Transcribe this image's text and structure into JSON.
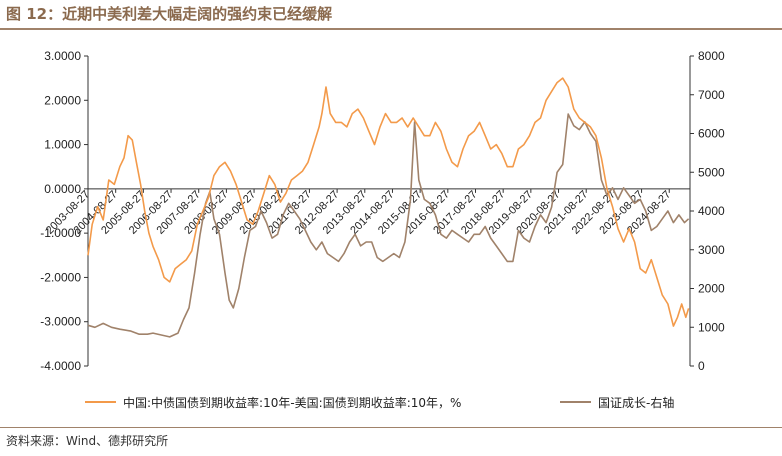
{
  "figure": {
    "title": "图 12：近期中美利差大幅走阔的强约束已经缓解",
    "source": "资料来源：Wind、德邦研究所"
  },
  "chart_data": {
    "type": "line",
    "x_tick_labels": [
      "2003-08-27",
      "2004-08-27",
      "2005-08-27",
      "2006-08-27",
      "2007-08-27",
      "2008-08-27",
      "2009-08-27",
      "2010-08-27",
      "2011-08-27",
      "2012-08-27",
      "2013-08-27",
      "2014-08-27",
      "2015-08-27",
      "2016-08-27",
      "2017-08-27",
      "2018-08-27",
      "2019-08-27",
      "2020-08-27",
      "2021-08-27",
      "2022-08-27",
      "2023-08-27",
      "2024-08-27"
    ],
    "y_left": {
      "ticks": [
        "3.0000",
        "2.0000",
        "1.0000",
        "0.0000",
        "-1.0000",
        "-2.0000",
        "-3.0000",
        "-4.0000"
      ],
      "ylim": [
        -4,
        3
      ]
    },
    "y_right": {
      "ticks": [
        "8000",
        "7000",
        "6000",
        "5000",
        "4000",
        "3000",
        "2000",
        "1000",
        "0"
      ],
      "ylim": [
        0,
        8000
      ]
    },
    "x_range": [
      2003.65,
      2025.4
    ],
    "series": [
      {
        "name": "中国:中债国债到期收益率:10年-美国:国债到期收益率:10年，%",
        "axis": "left",
        "color": "#F39A4A",
        "points": [
          [
            2003.65,
            -1.5
          ],
          [
            2003.8,
            -0.8
          ],
          [
            2004.0,
            -0.4
          ],
          [
            2004.2,
            -0.7
          ],
          [
            2004.4,
            0.2
          ],
          [
            2004.6,
            0.1
          ],
          [
            2004.8,
            0.5
          ],
          [
            2004.95,
            0.7
          ],
          [
            2005.1,
            1.2
          ],
          [
            2005.25,
            1.1
          ],
          [
            2005.4,
            0.6
          ],
          [
            2005.55,
            0.1
          ],
          [
            2005.7,
            -0.5
          ],
          [
            2005.85,
            -1.0
          ],
          [
            2006.0,
            -1.3
          ],
          [
            2006.2,
            -1.6
          ],
          [
            2006.4,
            -2.0
          ],
          [
            2006.6,
            -2.1
          ],
          [
            2006.8,
            -1.8
          ],
          [
            2007.0,
            -1.7
          ],
          [
            2007.2,
            -1.6
          ],
          [
            2007.4,
            -1.4
          ],
          [
            2007.6,
            -0.8
          ],
          [
            2007.8,
            -0.5
          ],
          [
            2008.0,
            -0.2
          ],
          [
            2008.2,
            0.3
          ],
          [
            2008.4,
            0.5
          ],
          [
            2008.6,
            0.6
          ],
          [
            2008.8,
            0.4
          ],
          [
            2009.0,
            0.1
          ],
          [
            2009.2,
            -0.3
          ],
          [
            2009.4,
            -0.7
          ],
          [
            2009.6,
            -0.8
          ],
          [
            2009.8,
            -0.5
          ],
          [
            2010.0,
            -0.1
          ],
          [
            2010.2,
            0.3
          ],
          [
            2010.4,
            0.1
          ],
          [
            2010.6,
            -0.3
          ],
          [
            2010.8,
            -0.1
          ],
          [
            2011.0,
            0.2
          ],
          [
            2011.2,
            0.3
          ],
          [
            2011.4,
            0.4
          ],
          [
            2011.6,
            0.6
          ],
          [
            2011.8,
            1.0
          ],
          [
            2012.0,
            1.4
          ],
          [
            2012.1,
            1.7
          ],
          [
            2012.25,
            2.3
          ],
          [
            2012.4,
            1.7
          ],
          [
            2012.6,
            1.5
          ],
          [
            2012.8,
            1.5
          ],
          [
            2013.0,
            1.4
          ],
          [
            2013.2,
            1.7
          ],
          [
            2013.4,
            1.8
          ],
          [
            2013.6,
            1.6
          ],
          [
            2013.8,
            1.3
          ],
          [
            2014.0,
            1.0
          ],
          [
            2014.2,
            1.4
          ],
          [
            2014.4,
            1.7
          ],
          [
            2014.6,
            1.5
          ],
          [
            2014.8,
            1.5
          ],
          [
            2015.0,
            1.6
          ],
          [
            2015.2,
            1.4
          ],
          [
            2015.4,
            1.6
          ],
          [
            2015.6,
            1.4
          ],
          [
            2015.8,
            1.2
          ],
          [
            2016.0,
            1.2
          ],
          [
            2016.2,
            1.5
          ],
          [
            2016.4,
            1.3
          ],
          [
            2016.6,
            0.9
          ],
          [
            2016.8,
            0.6
          ],
          [
            2017.0,
            0.5
          ],
          [
            2017.2,
            0.9
          ],
          [
            2017.4,
            1.2
          ],
          [
            2017.6,
            1.3
          ],
          [
            2017.8,
            1.5
          ],
          [
            2018.0,
            1.2
          ],
          [
            2018.2,
            0.9
          ],
          [
            2018.4,
            1.0
          ],
          [
            2018.6,
            0.8
          ],
          [
            2018.8,
            0.5
          ],
          [
            2019.0,
            0.5
          ],
          [
            2019.2,
            0.9
          ],
          [
            2019.4,
            1.0
          ],
          [
            2019.6,
            1.2
          ],
          [
            2019.8,
            1.5
          ],
          [
            2020.0,
            1.6
          ],
          [
            2020.2,
            2.0
          ],
          [
            2020.4,
            2.2
          ],
          [
            2020.6,
            2.4
          ],
          [
            2020.8,
            2.5
          ],
          [
            2021.0,
            2.3
          ],
          [
            2021.2,
            1.8
          ],
          [
            2021.4,
            1.6
          ],
          [
            2021.6,
            1.5
          ],
          [
            2021.8,
            1.4
          ],
          [
            2022.0,
            1.2
          ],
          [
            2022.2,
            0.7
          ],
          [
            2022.4,
            0.0
          ],
          [
            2022.6,
            -0.4
          ],
          [
            2022.8,
            -0.9
          ],
          [
            2023.0,
            -1.2
          ],
          [
            2023.2,
            -0.9
          ],
          [
            2023.4,
            -1.2
          ],
          [
            2023.6,
            -1.8
          ],
          [
            2023.8,
            -1.9
          ],
          [
            2024.0,
            -1.6
          ],
          [
            2024.2,
            -2.0
          ],
          [
            2024.4,
            -2.4
          ],
          [
            2024.6,
            -2.6
          ],
          [
            2024.8,
            -3.1
          ],
          [
            2024.95,
            -2.9
          ],
          [
            2025.1,
            -2.6
          ],
          [
            2025.25,
            -2.9
          ],
          [
            2025.35,
            -2.7
          ]
        ]
      },
      {
        "name": "国证成长-右轴",
        "axis": "right",
        "color": "#A0826A",
        "points": [
          [
            2003.65,
            1050
          ],
          [
            2003.9,
            1000
          ],
          [
            2004.2,
            1100
          ],
          [
            2004.5,
            1000
          ],
          [
            2004.8,
            950
          ],
          [
            2005.2,
            900
          ],
          [
            2005.5,
            820
          ],
          [
            2005.8,
            820
          ],
          [
            2006.0,
            850
          ],
          [
            2006.3,
            800
          ],
          [
            2006.6,
            750
          ],
          [
            2006.9,
            850
          ],
          [
            2007.1,
            1200
          ],
          [
            2007.3,
            1500
          ],
          [
            2007.5,
            2400
          ],
          [
            2007.7,
            3400
          ],
          [
            2007.9,
            4200
          ],
          [
            2008.05,
            4500
          ],
          [
            2008.2,
            3800
          ],
          [
            2008.4,
            3400
          ],
          [
            2008.6,
            2400
          ],
          [
            2008.75,
            1700
          ],
          [
            2008.9,
            1500
          ],
          [
            2009.1,
            2000
          ],
          [
            2009.3,
            2800
          ],
          [
            2009.5,
            3500
          ],
          [
            2009.7,
            3600
          ],
          [
            2009.9,
            4000
          ],
          [
            2010.1,
            3700
          ],
          [
            2010.3,
            3300
          ],
          [
            2010.5,
            3400
          ],
          [
            2010.7,
            3900
          ],
          [
            2010.9,
            4200
          ],
          [
            2011.1,
            4000
          ],
          [
            2011.3,
            3800
          ],
          [
            2011.5,
            3500
          ],
          [
            2011.7,
            3200
          ],
          [
            2011.9,
            3000
          ],
          [
            2012.1,
            3200
          ],
          [
            2012.3,
            2900
          ],
          [
            2012.5,
            2800
          ],
          [
            2012.7,
            2700
          ],
          [
            2012.9,
            2900
          ],
          [
            2013.1,
            3200
          ],
          [
            2013.3,
            3400
          ],
          [
            2013.5,
            3100
          ],
          [
            2013.7,
            3200
          ],
          [
            2013.9,
            3200
          ],
          [
            2014.1,
            2800
          ],
          [
            2014.3,
            2700
          ],
          [
            2014.5,
            2800
          ],
          [
            2014.7,
            2900
          ],
          [
            2014.9,
            2800
          ],
          [
            2015.1,
            3200
          ],
          [
            2015.3,
            4300
          ],
          [
            2015.45,
            6300
          ],
          [
            2015.6,
            4800
          ],
          [
            2015.8,
            4300
          ],
          [
            2016.0,
            4200
          ],
          [
            2016.2,
            3900
          ],
          [
            2016.4,
            3400
          ],
          [
            2016.6,
            3300
          ],
          [
            2016.8,
            3500
          ],
          [
            2017.0,
            3400
          ],
          [
            2017.2,
            3300
          ],
          [
            2017.4,
            3200
          ],
          [
            2017.6,
            3400
          ],
          [
            2017.8,
            3400
          ],
          [
            2018.0,
            3600
          ],
          [
            2018.2,
            3300
          ],
          [
            2018.4,
            3100
          ],
          [
            2018.6,
            2900
          ],
          [
            2018.8,
            2700
          ],
          [
            2019.0,
            2700
          ],
          [
            2019.2,
            3500
          ],
          [
            2019.4,
            3300
          ],
          [
            2019.6,
            3200
          ],
          [
            2019.8,
            3600
          ],
          [
            2020.0,
            3900
          ],
          [
            2020.2,
            3700
          ],
          [
            2020.4,
            4100
          ],
          [
            2020.6,
            5000
          ],
          [
            2020.8,
            5200
          ],
          [
            2021.0,
            6500
          ],
          [
            2021.2,
            6200
          ],
          [
            2021.4,
            6100
          ],
          [
            2021.6,
            6300
          ],
          [
            2021.8,
            6000
          ],
          [
            2022.0,
            5800
          ],
          [
            2022.2,
            4800
          ],
          [
            2022.4,
            4400
          ],
          [
            2022.6,
            4600
          ],
          [
            2022.8,
            4300
          ],
          [
            2023.0,
            4600
          ],
          [
            2023.2,
            4400
          ],
          [
            2023.4,
            4200
          ],
          [
            2023.6,
            4300
          ],
          [
            2023.8,
            4000
          ],
          [
            2024.0,
            3500
          ],
          [
            2024.2,
            3600
          ],
          [
            2024.4,
            3800
          ],
          [
            2024.6,
            4000
          ],
          [
            2024.8,
            3700
          ],
          [
            2025.0,
            3900
          ],
          [
            2025.2,
            3700
          ],
          [
            2025.35,
            3800
          ]
        ]
      }
    ],
    "legend_position": "bottom"
  }
}
